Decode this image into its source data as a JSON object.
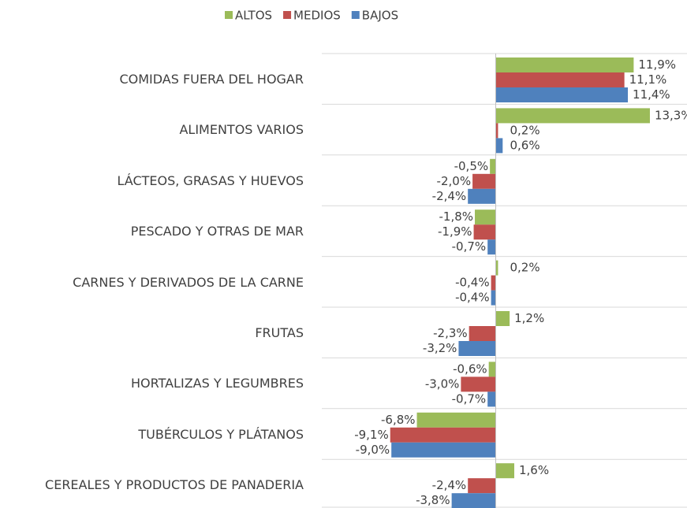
{
  "chart_data": {
    "type": "hbar",
    "categories": [
      "COMIDAS FUERA DEL HOGAR",
      "ALIMENTOS VARIOS",
      "LÁCTEOS, GRASAS Y HUEVOS",
      "PESCADO Y OTRAS DE MAR",
      "CARNES Y DERIVADOS DE LA CARNE",
      "FRUTAS",
      "HORTALIZAS Y LEGUMBRES",
      "TUBÉRCULOS Y PLÁTANOS",
      "CEREALES Y PRODUCTOS DE PANADERIA"
    ],
    "series": [
      {
        "name": "ALTOS",
        "color": "#9bbb59",
        "values": [
          11.9,
          13.3,
          -0.5,
          -1.8,
          0.2,
          1.2,
          -0.6,
          -6.8,
          1.6
        ],
        "value_labels": [
          "11,9%",
          "13,3%",
          "-0,5%",
          "-1,8%",
          "0,2%",
          "1,2%",
          "-0,6%",
          "-6,8%",
          "1,6%"
        ]
      },
      {
        "name": "MEDIOS",
        "color": "#c0504d",
        "values": [
          11.1,
          0.2,
          -2.0,
          -1.9,
          -0.4,
          -2.3,
          -3.0,
          -9.1,
          -2.4
        ],
        "value_labels": [
          "11,1%",
          "0,2%",
          "-2,0%",
          "-1,9%",
          "-0,4%",
          "-2,3%",
          "-3,0%",
          "-9,1%",
          "-2,4%"
        ]
      },
      {
        "name": "BAJOS",
        "color": "#4f81bd",
        "values": [
          11.4,
          0.6,
          -2.4,
          -0.7,
          -0.4,
          -3.2,
          -0.7,
          -9.0,
          -3.8
        ],
        "value_labels": [
          "11,4%",
          "0,6%",
          "-2,4%",
          "-0,7%",
          "-0,4%",
          "-3,2%",
          "-0,7%",
          "-9,0%",
          "-3,8%"
        ]
      }
    ],
    "xlim": [
      -15,
      16.5
    ]
  }
}
